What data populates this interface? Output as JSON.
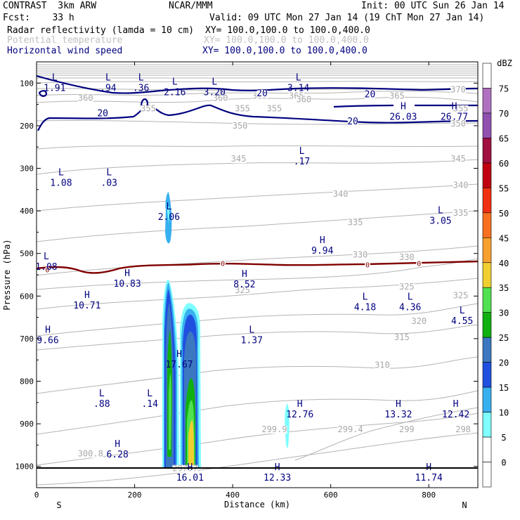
{
  "header": {
    "model": "CONTRAST  3km ARW",
    "center": "NCAR/MMM",
    "init": "Init: 00 UTC Sun 26 Jan 14",
    "fcst": "Fcst:    33 h",
    "valid": "Valid: 09 UTC Mon 27 Jan 14 (19 ChT Mon 27 Jan 14)",
    "fields": [
      {
        "name": "Radar reflectivity (lamda = 10 cm)",
        "xy": "XY= 100.0,100.0 to 100.0,400.0",
        "color": "#000000"
      },
      {
        "name": "Potential temperature",
        "xy": "XY= 100.0,100.0 to 100.0,400.0",
        "color": "#c0c0c0"
      },
      {
        "name": "Horizontal wind speed",
        "xy": "XY= 100.0,100.0 to 100.0,400.0",
        "color": "#000080"
      }
    ]
  },
  "chart_data": {
    "type": "heatmap",
    "xlabel": "Distance (km)",
    "ylabel": "Pressure (hPa)",
    "xlim": [
      0,
      900
    ],
    "ylim": [
      1050,
      50
    ],
    "x_ticks": [
      0,
      200,
      400,
      600,
      800
    ],
    "y_ticks": [
      100,
      200,
      300,
      400,
      500,
      600,
      700,
      800,
      900,
      1000
    ],
    "x_end_labels": {
      "left": "S",
      "right": "N"
    },
    "colorbar": {
      "unit": "dBZ",
      "levels": [
        0,
        5,
        10,
        15,
        20,
        25,
        30,
        35,
        40,
        45,
        50,
        55,
        60,
        65,
        70,
        75
      ],
      "colors": [
        "#ffffff",
        "#7fffff",
        "#38b0f0",
        "#2050e0",
        "#3c78c0",
        "#10b010",
        "#50e050",
        "#f0d030",
        "#f8a030",
        "#f87020",
        "#f03010",
        "#c00010",
        "#a01040",
        "#9050b0",
        "#b070c0",
        "#ffffff"
      ]
    },
    "theta_labels": [
      {
        "label": "370",
        "x": 860,
        "p": 115
      },
      {
        "label": "365",
        "x": 455,
        "p": 130
      },
      {
        "label": "365",
        "x": 530,
        "p": 130
      },
      {
        "label": "365",
        "x": 735,
        "p": 130
      },
      {
        "label": "360",
        "x": 100,
        "p": 135
      },
      {
        "label": "360",
        "x": 375,
        "p": 135
      },
      {
        "label": "360",
        "x": 545,
        "p": 138
      },
      {
        "label": "355",
        "x": 228,
        "p": 160
      },
      {
        "label": "355",
        "x": 420,
        "p": 160
      },
      {
        "label": "355",
        "x": 485,
        "p": 160
      },
      {
        "label": "355",
        "x": 865,
        "p": 160
      },
      {
        "label": "350",
        "x": 415,
        "p": 200
      },
      {
        "label": "350",
        "x": 860,
        "p": 195
      },
      {
        "label": "345",
        "x": 412,
        "p": 278
      },
      {
        "label": "345",
        "x": 860,
        "p": 278
      },
      {
        "label": "340",
        "x": 620,
        "p": 360
      },
      {
        "label": "340",
        "x": 865,
        "p": 340
      },
      {
        "label": "335",
        "x": 650,
        "p": 427
      },
      {
        "label": "335",
        "x": 865,
        "p": 405
      },
      {
        "label": "330",
        "x": 660,
        "p": 503
      },
      {
        "label": "330",
        "x": 755,
        "p": 509
      },
      {
        "label": "325",
        "x": 420,
        "p": 586
      },
      {
        "label": "325",
        "x": 755,
        "p": 578
      },
      {
        "label": "325",
        "x": 865,
        "p": 599
      },
      {
        "label": "320",
        "x": 780,
        "p": 659
      },
      {
        "label": "315",
        "x": 745,
        "p": 697
      },
      {
        "label": "310",
        "x": 705,
        "p": 762
      },
      {
        "label": "299.9",
        "x": 485,
        "p": 913
      },
      {
        "label": "299.4",
        "x": 640,
        "p": 913
      },
      {
        "label": "299",
        "x": 755,
        "p": 913
      },
      {
        "label": "298",
        "x": 870,
        "p": 913
      },
      {
        "label": "300.8",
        "x": 110,
        "p": 970
      },
      {
        "label": "297.7",
        "x": 303,
        "p": 1005
      }
    ],
    "wind_labels": [
      {
        "label": "20",
        "x": 460,
        "p": 124
      },
      {
        "label": "20",
        "x": 680,
        "p": 127
      },
      {
        "label": "20",
        "x": 135,
        "p": 171
      },
      {
        "label": "20",
        "x": 645,
        "p": 190
      }
    ],
    "zero_isotherm_labels": [
      {
        "label": "0",
        "x": 22,
        "p": 538
      },
      {
        "label": "0",
        "x": 380,
        "p": 523
      },
      {
        "label": "0",
        "x": 675,
        "p": 526
      },
      {
        "label": "0",
        "x": 780,
        "p": 523
      }
    ],
    "extrema": [
      {
        "type": "L",
        "value": "1.91",
        "x": 37,
        "p": 95
      },
      {
        "type": "L",
        "value": ".94",
        "x": 146,
        "p": 95
      },
      {
        "type": "L",
        "value": ".36",
        "x": 213,
        "p": 95
      },
      {
        "type": "L",
        "value": "2.16",
        "x": 282,
        "p": 105
      },
      {
        "type": "L",
        "value": "3.20",
        "x": 363,
        "p": 105
      },
      {
        "type": "L",
        "value": "3.14",
        "x": 534,
        "p": 95
      },
      {
        "type": "H",
        "value": "26.03",
        "x": 748,
        "p": 163
      },
      {
        "type": "H",
        "value": "26.77",
        "x": 852,
        "p": 163
      },
      {
        "type": "L",
        "value": ".17",
        "x": 541,
        "p": 268
      },
      {
        "type": "L",
        "value": "1.08",
        "x": 50,
        "p": 318
      },
      {
        "type": "L",
        "value": ".03",
        "x": 148,
        "p": 318
      },
      {
        "type": "L",
        "value": "2.06",
        "x": 270,
        "p": 398
      },
      {
        "type": "L",
        "value": "3.05",
        "x": 824,
        "p": 407
      },
      {
        "type": "H",
        "value": "9.94",
        "x": 583,
        "p": 477
      },
      {
        "type": "L",
        "value": "1.08",
        "x": 20,
        "p": 515
      },
      {
        "type": "H",
        "value": "10.83",
        "x": 185,
        "p": 555
      },
      {
        "type": "H",
        "value": "8.52",
        "x": 424,
        "p": 557
      },
      {
        "type": "H",
        "value": "10.71",
        "x": 103,
        "p": 606
      },
      {
        "type": "L",
        "value": "4.18",
        "x": 670,
        "p": 610
      },
      {
        "type": "L",
        "value": "4.36",
        "x": 762,
        "p": 610
      },
      {
        "type": "L",
        "value": "4.55",
        "x": 868,
        "p": 642
      },
      {
        "type": "H",
        "value": "9.66",
        "x": 23,
        "p": 688
      },
      {
        "type": "L",
        "value": "1.37",
        "x": 439,
        "p": 688
      },
      {
        "type": "H",
        "value": "17.67",
        "x": 291,
        "p": 745
      },
      {
        "type": "L",
        "value": ".88",
        "x": 133,
        "p": 837
      },
      {
        "type": "L",
        "value": ".14",
        "x": 231,
        "p": 837
      },
      {
        "type": "H",
        "value": "12.76",
        "x": 537,
        "p": 862
      },
      {
        "type": "H",
        "value": "13.32",
        "x": 738,
        "p": 862
      },
      {
        "type": "H",
        "value": "12.42",
        "x": 855,
        "p": 862
      },
      {
        "type": "H",
        "value": "6.28",
        "x": 165,
        "p": 956
      },
      {
        "type": "H",
        "value": "16.01",
        "x": 313,
        "p": 1010
      },
      {
        "type": "H",
        "value": "12.33",
        "x": 491,
        "p": 1010
      },
      {
        "type": "H",
        "value": "11.74",
        "x": 800,
        "p": 1010
      }
    ]
  }
}
